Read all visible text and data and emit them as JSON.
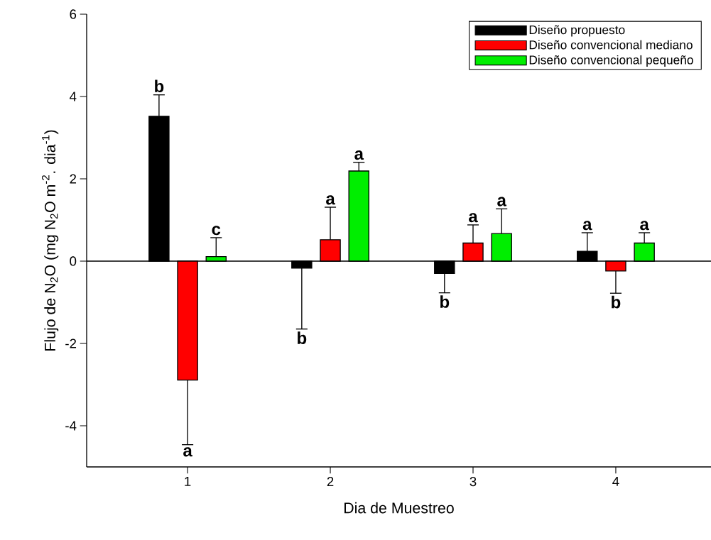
{
  "chart_data": {
    "type": "bar",
    "xlabel": "Dia de Muestreo",
    "ylabel": "Flujo de N$_{2}$O (mg N$_{2}$O m$^{-2}$. dia$^{-1}$)",
    "categories": [
      "1",
      "2",
      "3",
      "4"
    ],
    "series": [
      {
        "name": "Diseño propuesto",
        "color": "#000000",
        "values": [
          3.52,
          -0.17,
          -0.3,
          0.24
        ],
        "errors": [
          [
            3.52,
            4.04
          ],
          [
            -1.65,
            -0.17
          ],
          [
            -0.77,
            -0.3
          ],
          [
            0.24,
            0.69
          ]
        ]
      },
      {
        "name": "Diseño convencional mediano",
        "color": "#ff0000",
        "values": [
          -2.89,
          0.52,
          0.44,
          -0.24
        ],
        "errors": [
          [
            -4.46,
            -2.89
          ],
          [
            0.52,
            1.31
          ],
          [
            0.44,
            0.88
          ],
          [
            -0.78,
            -0.24
          ]
        ]
      },
      {
        "name": "Diseño convencional pequeño",
        "color": "#00ee00",
        "values": [
          0.11,
          2.19,
          0.67,
          0.44
        ],
        "errors": [
          [
            0.11,
            0.57
          ],
          [
            2.19,
            2.4
          ],
          [
            0.67,
            1.27
          ],
          [
            0.44,
            0.69
          ]
        ]
      }
    ],
    "annotations": [
      "b",
      "a",
      "c",
      "b",
      "a",
      "a",
      "b",
      "a",
      "a",
      "a",
      "b",
      "a"
    ],
    "ylim": [
      -5,
      6
    ],
    "yticks": [
      -4,
      -2,
      0,
      2,
      4,
      6
    ],
    "ref_lines": [
      {
        "axis": "y",
        "value": 0
      }
    ],
    "legend": "top right",
    "grid": false
  }
}
